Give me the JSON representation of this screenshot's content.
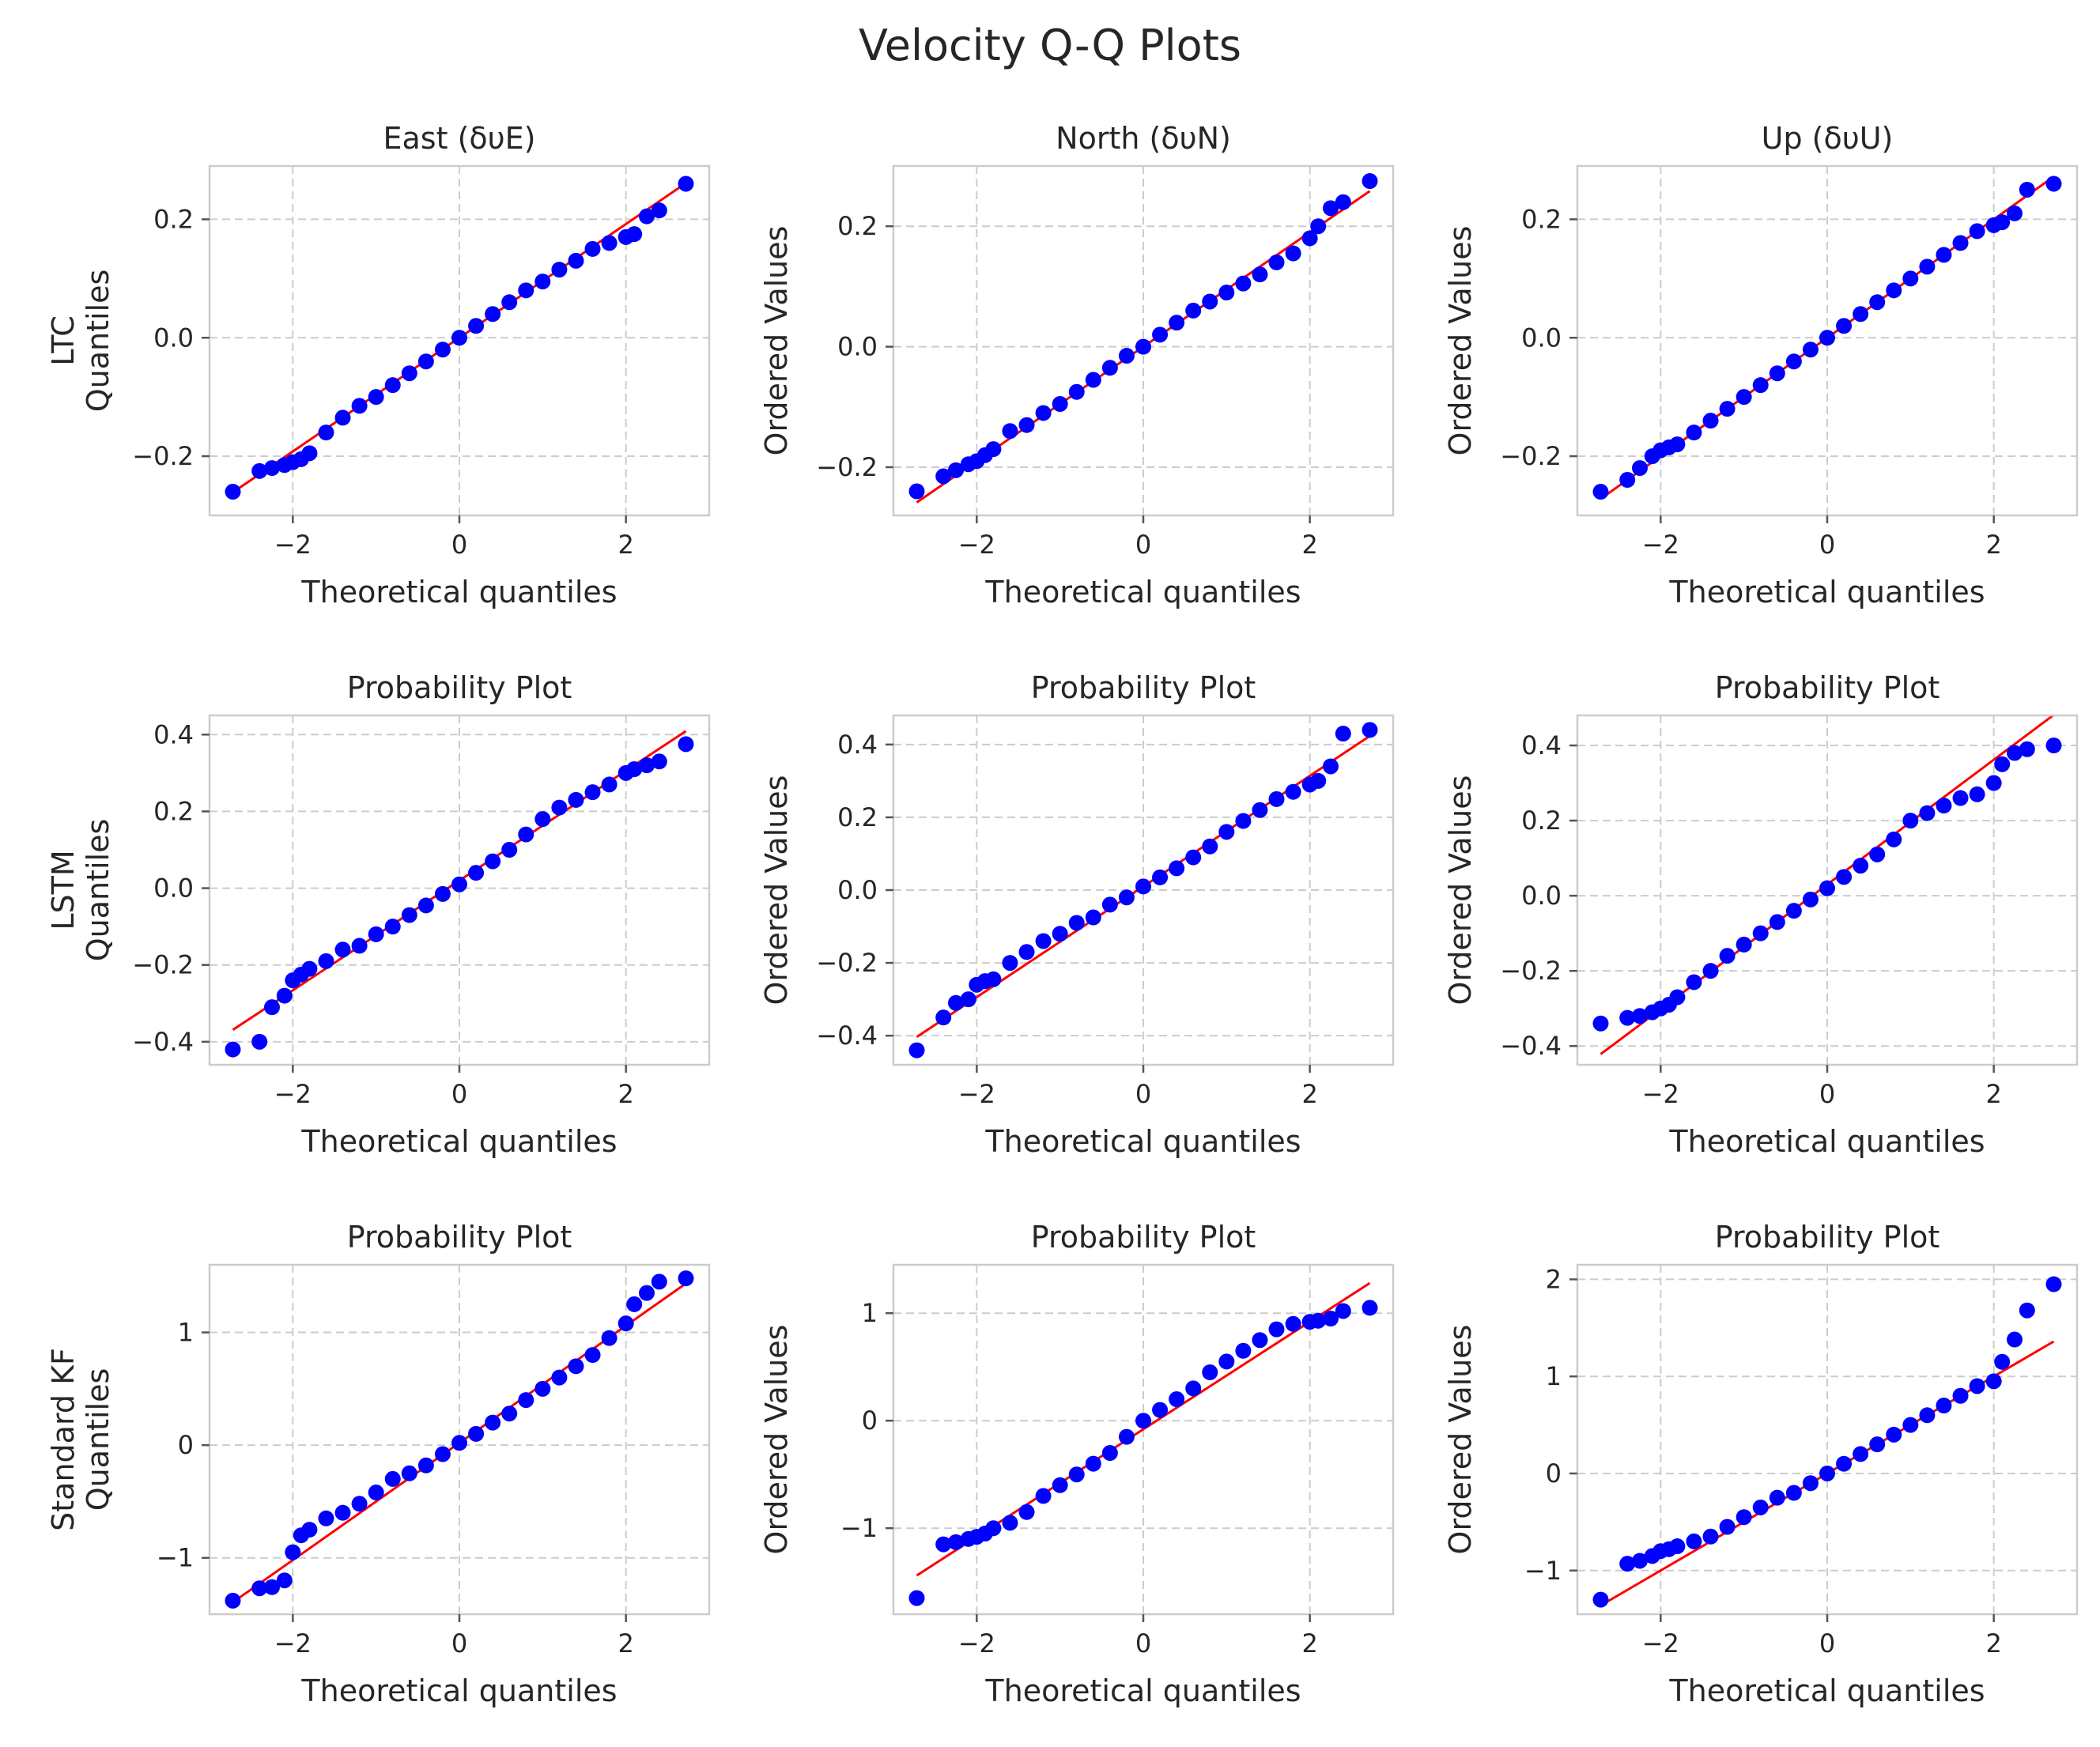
{
  "figure": {
    "title": "Velocity Q-Q Plots"
  },
  "chart_data": [
    {
      "type": "scatter",
      "title": "East (δυE)",
      "xlabel": "Theoretical quantiles",
      "ylabel": "LTC\nQuantiles",
      "xlim": [
        -3,
        3
      ],
      "ylim": [
        -0.3,
        0.29
      ],
      "xticks": [
        -2,
        0,
        2
      ],
      "xtick_labels": [
        "−2",
        "0",
        "2"
      ],
      "yticks": [
        -0.2,
        0,
        0.2
      ],
      "ytick_labels": [
        "−0.2",
        "0.0",
        "0.2"
      ],
      "fit": {
        "slope": 0.096,
        "intercept": 0.0
      },
      "x": [
        -2.72,
        -2.4,
        -2.25,
        -2.1,
        -2.0,
        -1.9,
        -1.8,
        -1.6,
        -1.4,
        -1.2,
        -1.0,
        -0.8,
        -0.6,
        -0.4,
        -0.2,
        0.0,
        0.2,
        0.4,
        0.6,
        0.8,
        1.0,
        1.2,
        1.4,
        1.6,
        1.8,
        2.0,
        2.1,
        2.25,
        2.4,
        2.72
      ],
      "y": [
        -0.26,
        -0.225,
        -0.22,
        -0.215,
        -0.21,
        -0.205,
        -0.195,
        -0.16,
        -0.135,
        -0.115,
        -0.1,
        -0.08,
        -0.06,
        -0.04,
        -0.02,
        0.0,
        0.02,
        0.04,
        0.06,
        0.08,
        0.095,
        0.115,
        0.13,
        0.15,
        0.16,
        0.17,
        0.175,
        0.205,
        0.215,
        0.26
      ],
      "grid": true
    },
    {
      "type": "scatter",
      "title": "North (δυN)",
      "xlabel": "Theoretical quantiles",
      "ylabel": "Ordered Values",
      "xlim": [
        -3,
        3
      ],
      "ylim": [
        -0.28,
        0.3
      ],
      "xticks": [
        -2,
        0,
        2
      ],
      "xtick_labels": [
        "−2",
        "0",
        "2"
      ],
      "yticks": [
        -0.2,
        0,
        0.2
      ],
      "ytick_labels": [
        "−0.2",
        "0.0",
        "0.2"
      ],
      "fit": {
        "slope": 0.095,
        "intercept": 0.0
      },
      "x": [
        -2.72,
        -2.4,
        -2.25,
        -2.1,
        -2.0,
        -1.9,
        -1.8,
        -1.6,
        -1.4,
        -1.2,
        -1.0,
        -0.8,
        -0.6,
        -0.4,
        -0.2,
        0.0,
        0.2,
        0.4,
        0.6,
        0.8,
        1.0,
        1.2,
        1.4,
        1.6,
        1.8,
        2.0,
        2.1,
        2.25,
        2.4,
        2.72
      ],
      "y": [
        -0.24,
        -0.215,
        -0.205,
        -0.195,
        -0.19,
        -0.18,
        -0.17,
        -0.14,
        -0.13,
        -0.11,
        -0.095,
        -0.075,
        -0.055,
        -0.035,
        -0.015,
        0.0,
        0.02,
        0.04,
        0.06,
        0.075,
        0.09,
        0.105,
        0.12,
        0.14,
        0.155,
        0.18,
        0.2,
        0.23,
        0.24,
        0.275
      ],
      "grid": true
    },
    {
      "type": "scatter",
      "title": "Up (δυU)",
      "xlabel": "Theoretical quantiles",
      "ylabel": "Ordered Values",
      "xlim": [
        -3,
        3
      ],
      "ylim": [
        -0.3,
        0.29
      ],
      "xticks": [
        -2,
        0,
        2
      ],
      "xtick_labels": [
        "−2",
        "0",
        "2"
      ],
      "yticks": [
        -0.2,
        0,
        0.2
      ],
      "ytick_labels": [
        "−0.2",
        "0.0",
        "0.2"
      ],
      "fit": {
        "slope": 0.1,
        "intercept": 0.0
      },
      "x": [
        -2.72,
        -2.4,
        -2.25,
        -2.1,
        -2.0,
        -1.9,
        -1.8,
        -1.6,
        -1.4,
        -1.2,
        -1.0,
        -0.8,
        -0.6,
        -0.4,
        -0.2,
        0.0,
        0.2,
        0.4,
        0.6,
        0.8,
        1.0,
        1.2,
        1.4,
        1.6,
        1.8,
        2.0,
        2.1,
        2.25,
        2.4,
        2.72
      ],
      "y": [
        -0.26,
        -0.24,
        -0.22,
        -0.2,
        -0.19,
        -0.185,
        -0.18,
        -0.16,
        -0.14,
        -0.12,
        -0.1,
        -0.08,
        -0.06,
        -0.04,
        -0.02,
        0.0,
        0.02,
        0.04,
        0.06,
        0.08,
        0.1,
        0.12,
        0.14,
        0.16,
        0.18,
        0.19,
        0.195,
        0.21,
        0.25,
        0.26
      ],
      "grid": true
    },
    {
      "type": "scatter",
      "title": "Probability Plot",
      "xlabel": "Theoretical quantiles",
      "ylabel": "LSTM\nQuantiles",
      "xlim": [
        -3,
        3
      ],
      "ylim": [
        -0.46,
        0.45
      ],
      "xticks": [
        -2,
        0,
        2
      ],
      "xtick_labels": [
        "−2",
        "0",
        "2"
      ],
      "yticks": [
        -0.4,
        -0.2,
        0,
        0.2,
        0.4
      ],
      "ytick_labels": [
        "−0.4",
        "−0.2",
        "0.0",
        "0.2",
        "0.4"
      ],
      "fit": {
        "slope": 0.143,
        "intercept": 0.02
      },
      "x": [
        -2.72,
        -2.4,
        -2.25,
        -2.1,
        -2.0,
        -1.9,
        -1.8,
        -1.6,
        -1.4,
        -1.2,
        -1.0,
        -0.8,
        -0.6,
        -0.4,
        -0.2,
        0.0,
        0.2,
        0.4,
        0.6,
        0.8,
        1.0,
        1.2,
        1.4,
        1.6,
        1.8,
        2.0,
        2.1,
        2.25,
        2.4,
        2.72
      ],
      "y": [
        -0.42,
        -0.4,
        -0.31,
        -0.28,
        -0.24,
        -0.225,
        -0.21,
        -0.19,
        -0.16,
        -0.15,
        -0.12,
        -0.1,
        -0.07,
        -0.045,
        -0.015,
        0.01,
        0.04,
        0.07,
        0.1,
        0.14,
        0.18,
        0.21,
        0.23,
        0.25,
        0.27,
        0.3,
        0.31,
        0.32,
        0.33,
        0.375
      ],
      "grid": true
    },
    {
      "type": "scatter",
      "title": "Probability Plot",
      "xlabel": "Theoretical quantiles",
      "ylabel": "Ordered Values",
      "xlim": [
        -3,
        3
      ],
      "ylim": [
        -0.48,
        0.48
      ],
      "xticks": [
        -2,
        0,
        2
      ],
      "xtick_labels": [
        "−2",
        "0",
        "2"
      ],
      "yticks": [
        -0.4,
        -0.2,
        0,
        0.2,
        0.4
      ],
      "ytick_labels": [
        "−0.4",
        "−0.2",
        "0.0",
        "0.2",
        "0.4"
      ],
      "fit": {
        "slope": 0.152,
        "intercept": 0.01
      },
      "x": [
        -2.72,
        -2.4,
        -2.25,
        -2.1,
        -2.0,
        -1.9,
        -1.8,
        -1.6,
        -1.4,
        -1.2,
        -1.0,
        -0.8,
        -0.6,
        -0.4,
        -0.2,
        0.0,
        0.2,
        0.4,
        0.6,
        0.8,
        1.0,
        1.2,
        1.4,
        1.6,
        1.8,
        2.0,
        2.1,
        2.25,
        2.4,
        2.72
      ],
      "y": [
        -0.44,
        -0.35,
        -0.31,
        -0.3,
        -0.26,
        -0.25,
        -0.245,
        -0.2,
        -0.17,
        -0.14,
        -0.12,
        -0.09,
        -0.075,
        -0.04,
        -0.02,
        0.01,
        0.035,
        0.06,
        0.09,
        0.12,
        0.16,
        0.19,
        0.22,
        0.25,
        0.27,
        0.29,
        0.3,
        0.34,
        0.43,
        0.44
      ],
      "grid": true
    },
    {
      "type": "scatter",
      "title": "Probability Plot",
      "xlabel": "Theoretical quantiles",
      "ylabel": "Ordered Values",
      "xlim": [
        -3,
        3
      ],
      "ylim": [
        -0.45,
        0.48
      ],
      "xticks": [
        -2,
        0,
        2
      ],
      "xtick_labels": [
        "−2",
        "0",
        "2"
      ],
      "yticks": [
        -0.4,
        -0.2,
        0,
        0.2,
        0.4
      ],
      "ytick_labels": [
        "−0.4",
        "−0.2",
        "0.0",
        "0.2",
        "0.4"
      ],
      "fit": {
        "slope": 0.166,
        "intercept": 0.03
      },
      "x": [
        -2.72,
        -2.4,
        -2.25,
        -2.1,
        -2.0,
        -1.9,
        -1.8,
        -1.6,
        -1.4,
        -1.2,
        -1.0,
        -0.8,
        -0.6,
        -0.4,
        -0.2,
        0.0,
        0.2,
        0.4,
        0.6,
        0.8,
        1.0,
        1.2,
        1.4,
        1.6,
        1.8,
        2.0,
        2.1,
        2.25,
        2.4,
        2.72
      ],
      "y": [
        -0.34,
        -0.325,
        -0.32,
        -0.31,
        -0.3,
        -0.29,
        -0.27,
        -0.23,
        -0.2,
        -0.16,
        -0.13,
        -0.1,
        -0.07,
        -0.04,
        -0.01,
        0.02,
        0.05,
        0.08,
        0.11,
        0.15,
        0.2,
        0.22,
        0.24,
        0.26,
        0.27,
        0.3,
        0.35,
        0.38,
        0.39,
        0.4
      ],
      "grid": true
    },
    {
      "type": "scatter",
      "title": "Probability Plot",
      "xlabel": "Theoretical quantiles",
      "ylabel": "Standard KF\nQuantiles",
      "xlim": [
        -3,
        3
      ],
      "ylim": [
        -1.5,
        1.6
      ],
      "xticks": [
        -2,
        0,
        2
      ],
      "xtick_labels": [
        "−2",
        "0",
        "2"
      ],
      "yticks": [
        -1,
        0,
        1
      ],
      "ytick_labels": [
        "−1",
        "0",
        "1"
      ],
      "fit": {
        "slope": 0.52,
        "intercept": 0.02
      },
      "x": [
        -2.72,
        -2.4,
        -2.25,
        -2.1,
        -2.0,
        -1.9,
        -1.8,
        -1.6,
        -1.4,
        -1.2,
        -1.0,
        -0.8,
        -0.6,
        -0.4,
        -0.2,
        0.0,
        0.2,
        0.4,
        0.6,
        0.8,
        1.0,
        1.2,
        1.4,
        1.6,
        1.8,
        2.0,
        2.1,
        2.25,
        2.4,
        2.72
      ],
      "y": [
        -1.38,
        -1.27,
        -1.26,
        -1.2,
        -0.95,
        -0.8,
        -0.75,
        -0.65,
        -0.6,
        -0.52,
        -0.42,
        -0.3,
        -0.25,
        -0.18,
        -0.08,
        0.02,
        0.1,
        0.2,
        0.28,
        0.4,
        0.5,
        0.6,
        0.7,
        0.8,
        0.95,
        1.08,
        1.25,
        1.35,
        1.45,
        1.48
      ],
      "grid": true
    },
    {
      "type": "scatter",
      "title": "Probability Plot",
      "xlabel": "Theoretical quantiles",
      "ylabel": "Ordered Values",
      "xlim": [
        -3,
        3
      ],
      "ylim": [
        -1.8,
        1.45
      ],
      "xticks": [
        -2,
        0,
        2
      ],
      "xtick_labels": [
        "−2",
        "0",
        "2"
      ],
      "yticks": [
        -1,
        0,
        1
      ],
      "ytick_labels": [
        "−1",
        "0",
        "1"
      ],
      "fit": {
        "slope": 0.5,
        "intercept": -0.08
      },
      "x": [
        -2.72,
        -2.4,
        -2.25,
        -2.1,
        -2.0,
        -1.9,
        -1.8,
        -1.6,
        -1.4,
        -1.2,
        -1.0,
        -0.8,
        -0.6,
        -0.4,
        -0.2,
        0.0,
        0.2,
        0.4,
        0.6,
        0.8,
        1.0,
        1.2,
        1.4,
        1.6,
        1.8,
        2.0,
        2.1,
        2.25,
        2.4,
        2.72
      ],
      "y": [
        -1.65,
        -1.15,
        -1.13,
        -1.1,
        -1.08,
        -1.05,
        -1.0,
        -0.95,
        -0.85,
        -0.7,
        -0.6,
        -0.5,
        -0.4,
        -0.3,
        -0.15,
        0.0,
        0.1,
        0.2,
        0.3,
        0.45,
        0.55,
        0.65,
        0.75,
        0.85,
        0.9,
        0.92,
        0.93,
        0.95,
        1.02,
        1.05
      ],
      "grid": true
    },
    {
      "type": "scatter",
      "title": "Probability Plot",
      "xlabel": "Theoretical quantiles",
      "ylabel": "Ordered Values",
      "xlim": [
        -3,
        3
      ],
      "ylim": [
        -1.45,
        2.15
      ],
      "xticks": [
        -2,
        0,
        2
      ],
      "xtick_labels": [
        "−2",
        "0",
        "2"
      ],
      "yticks": [
        -1,
        0,
        1,
        2
      ],
      "ytick_labels": [
        "−1",
        "0",
        "1",
        "2"
      ],
      "fit": {
        "slope": 0.5,
        "intercept": 0.0
      },
      "x": [
        -2.72,
        -2.4,
        -2.25,
        -2.1,
        -2.0,
        -1.9,
        -1.8,
        -1.6,
        -1.4,
        -1.2,
        -1.0,
        -0.8,
        -0.6,
        -0.4,
        -0.2,
        0.0,
        0.2,
        0.4,
        0.6,
        0.8,
        1.0,
        1.2,
        1.4,
        1.6,
        1.8,
        2.0,
        2.1,
        2.25,
        2.4,
        2.72
      ],
      "y": [
        -1.3,
        -0.93,
        -0.9,
        -0.85,
        -0.8,
        -0.78,
        -0.75,
        -0.7,
        -0.65,
        -0.55,
        -0.45,
        -0.35,
        -0.25,
        -0.2,
        -0.1,
        0.0,
        0.1,
        0.2,
        0.3,
        0.4,
        0.5,
        0.6,
        0.7,
        0.8,
        0.9,
        0.95,
        1.15,
        1.38,
        1.68,
        1.95
      ],
      "grid": true
    }
  ]
}
